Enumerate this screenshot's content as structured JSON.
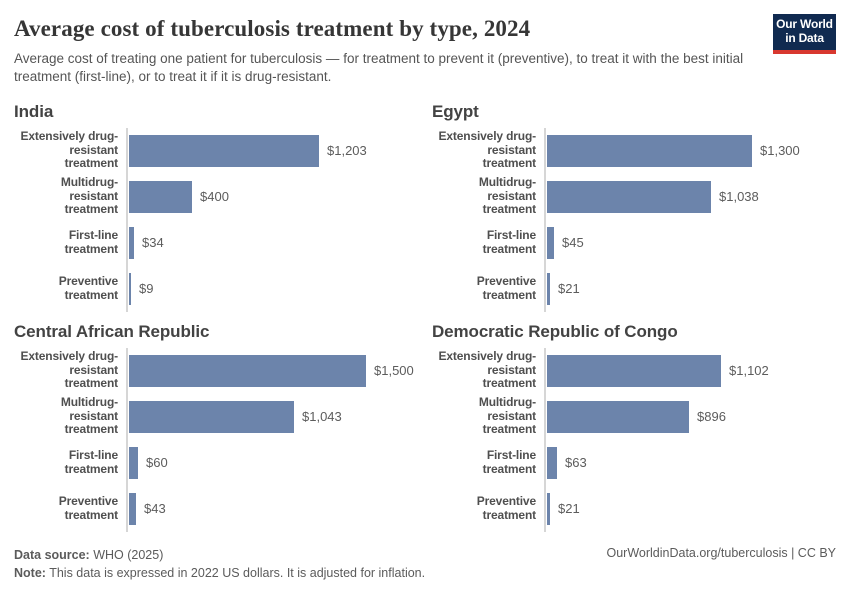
{
  "header": {
    "title": "Average cost of tuberculosis treatment by type, 2024",
    "subtitle": "Average cost of treating one patient for tuberculosis — for treatment to prevent it (preventive), to treat it with the best initial treatment (first-line), or to treat it if it is drug-resistant.",
    "logo": {
      "line1": "Our World",
      "line2": "in Data",
      "bg_color": "#102a50",
      "accent_color": "#d8382f"
    }
  },
  "chart_data": {
    "type": "bar",
    "orientation": "horizontal",
    "layout": "2x2 small multiples, shared x scale",
    "unit": "US dollars (2022)",
    "categories": [
      "Extensively drug-resistant treatment",
      "Multidrug-resistant treatment",
      "First-line treatment",
      "Preventive treatment"
    ],
    "xlim": [
      0,
      1500
    ],
    "grid": false,
    "bar_color": "#6c84ab",
    "panels": [
      {
        "title": "India",
        "values": [
          1203,
          400,
          34,
          9
        ],
        "value_labels": [
          "$1,203",
          "$400",
          "$34",
          "$9"
        ]
      },
      {
        "title": "Egypt",
        "values": [
          1300,
          1038,
          45,
          21
        ],
        "value_labels": [
          "$1,300",
          "$1,038",
          "$45",
          "$21"
        ]
      },
      {
        "title": "Central African Republic",
        "values": [
          1500,
          1043,
          60,
          43
        ],
        "value_labels": [
          "$1,500",
          "$1,043",
          "$60",
          "$43"
        ]
      },
      {
        "title": "Democratic Republic of Congo",
        "values": [
          1102,
          896,
          63,
          21
        ],
        "value_labels": [
          "$1,102",
          "$896",
          "$63",
          "$21"
        ]
      }
    ]
  },
  "footer": {
    "source_label": "Data source:",
    "source_value": " WHO (2025)",
    "note_label": "Note:",
    "note_value": " This data is expressed in 2022 US dollars. It is adjusted for inflation.",
    "credit": "OurWorldinData.org/tuberculosis | CC BY"
  }
}
